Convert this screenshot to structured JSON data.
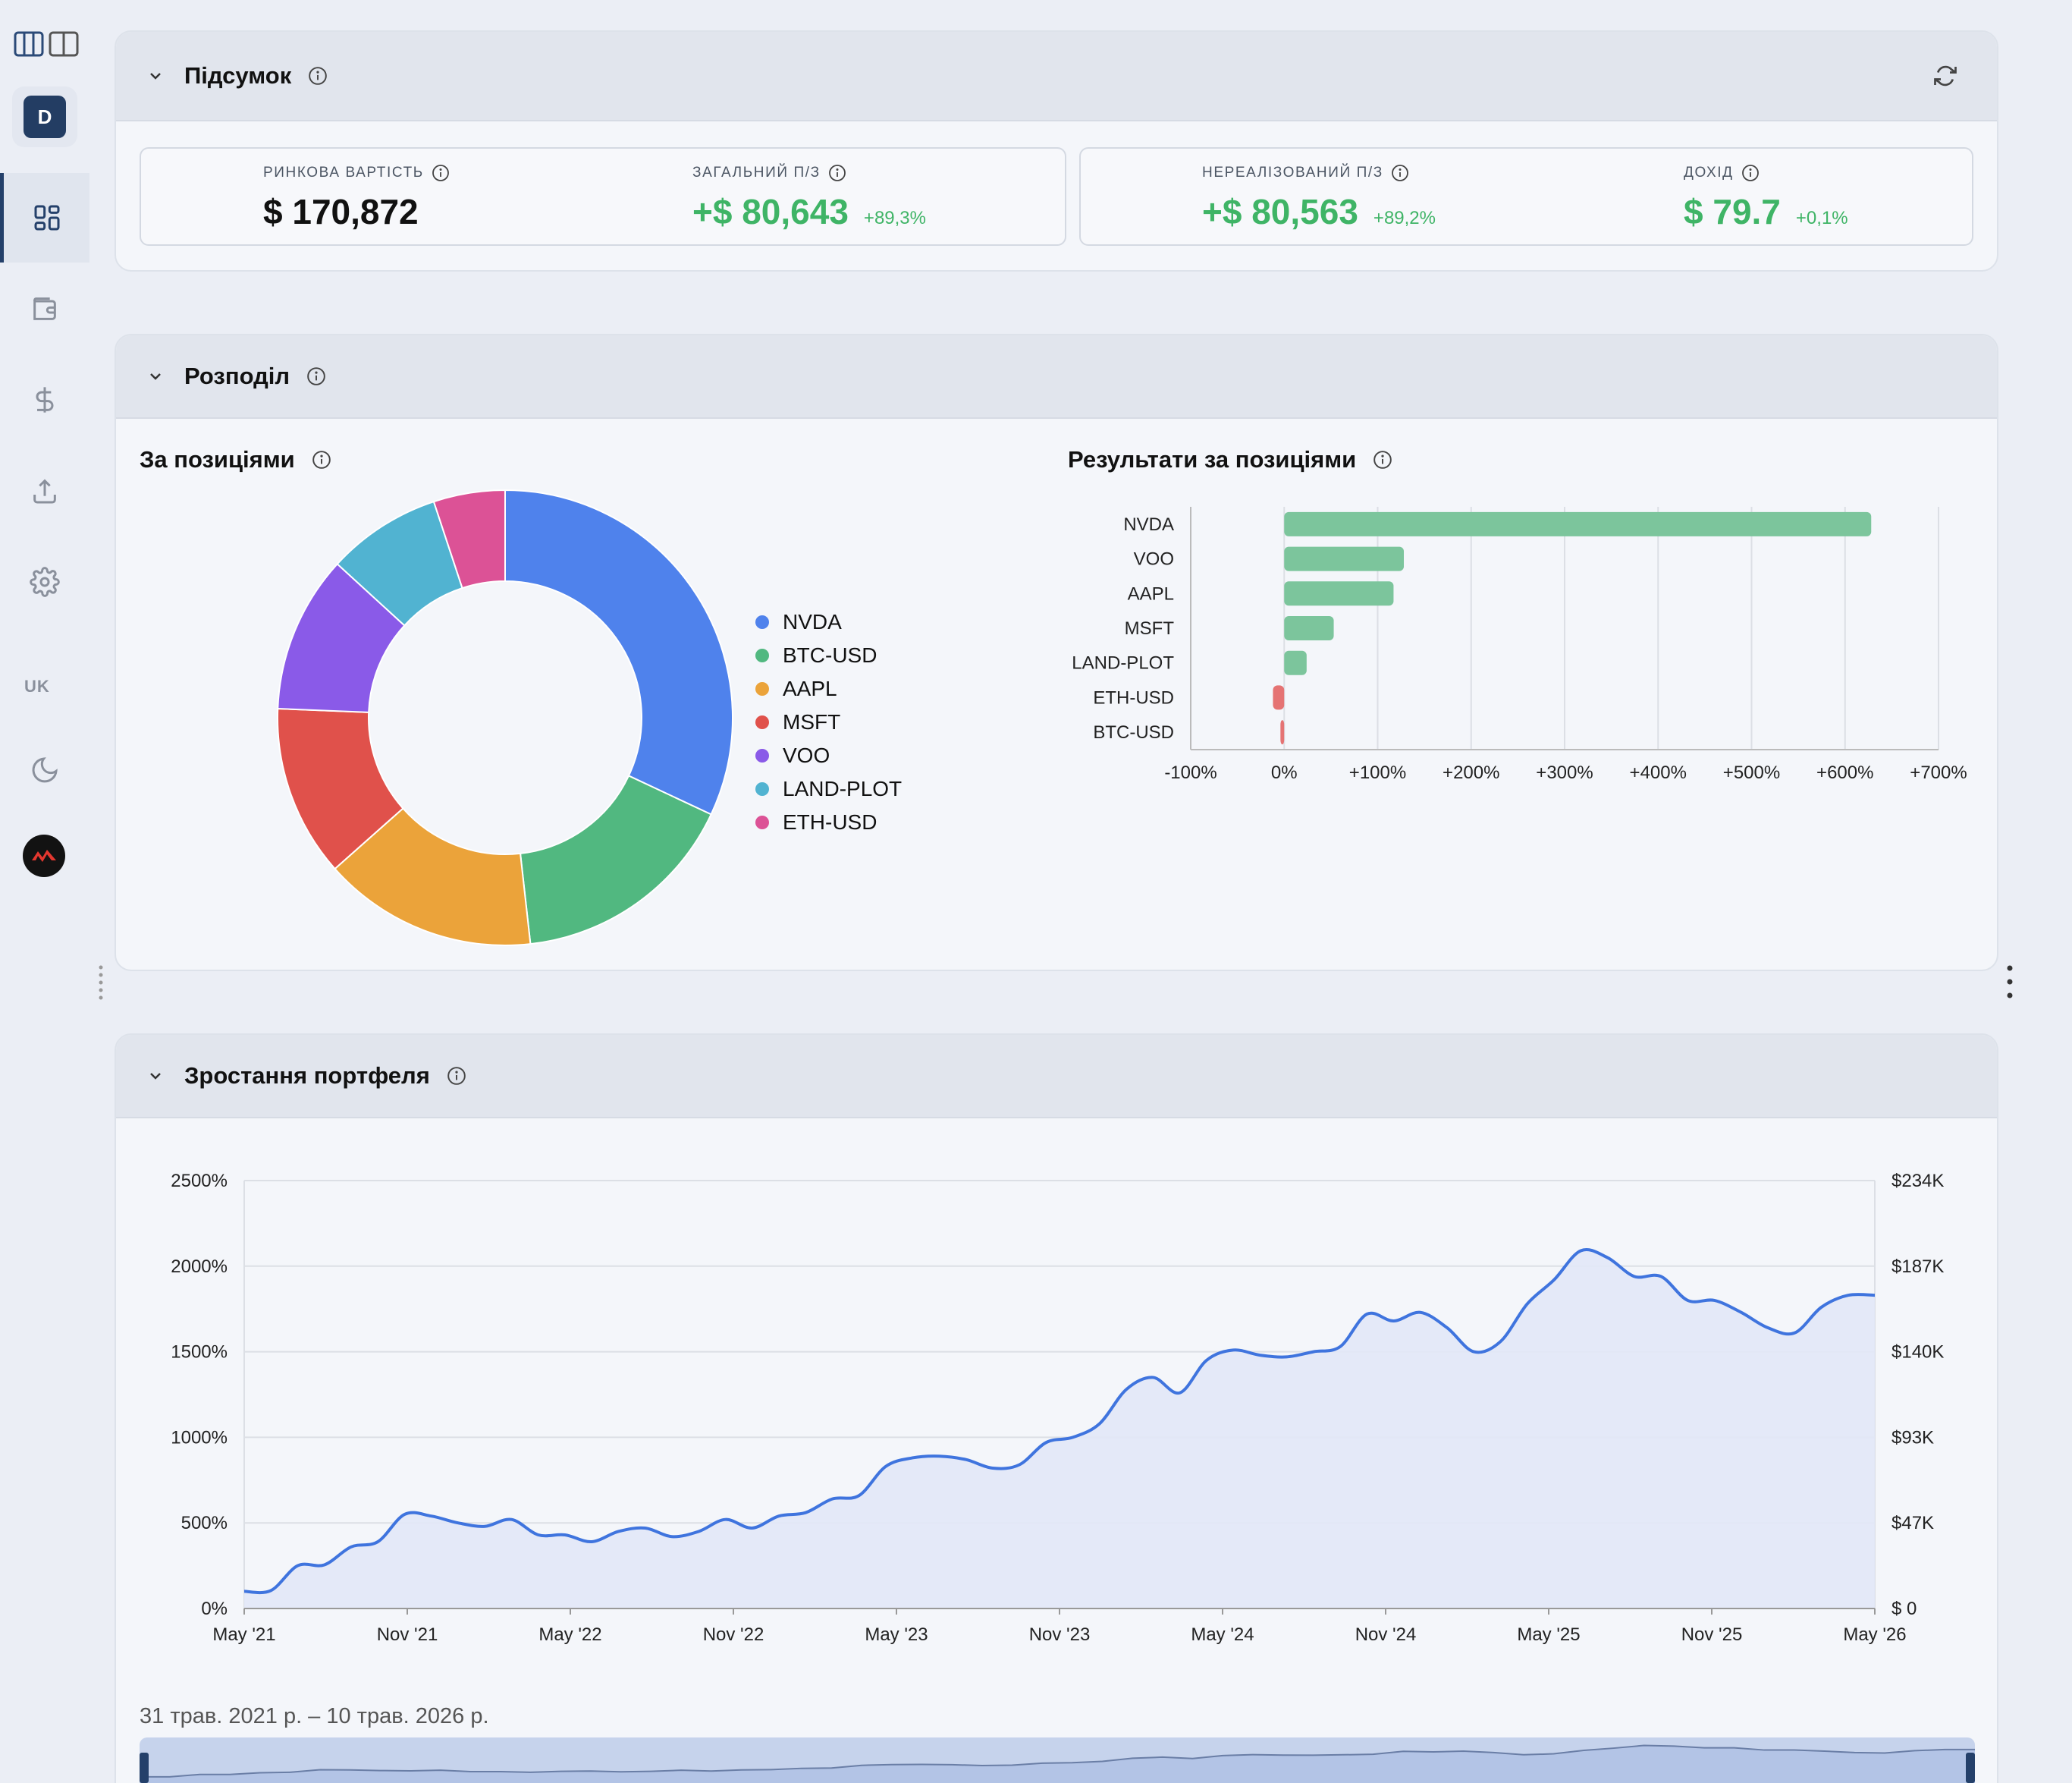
{
  "sidebar": {
    "avatar_letter": "D",
    "language": "UK"
  },
  "summary": {
    "title": "Підсумок",
    "market_value": {
      "label": "РИНКОВА ВАРТІСТЬ",
      "value": "$ 170,872"
    },
    "total_pl": {
      "label": "ЗАГАЛЬНИЙ П/З",
      "value": "+$ 80,643",
      "pct": "+89,3%"
    },
    "unrealized_pl": {
      "label": "НЕРЕАЛІЗОВАНИЙ П/З",
      "value": "+$ 80,563",
      "pct": "+89,2%"
    },
    "income": {
      "label": "ДОХІД",
      "value": "$ 79.7",
      "pct": "+0,1%"
    }
  },
  "allocation": {
    "title": "Розподіл",
    "by_position_title": "За позиціями",
    "results_title": "Результати за позиціями"
  },
  "growth": {
    "title": "Зростання портфеля",
    "date_range": "31 трав. 2021 р. – 10 трав. 2026 р."
  },
  "colors": {
    "accent": "#24406a",
    "positive": "#3fb466",
    "bar_positive": "#7cc59c",
    "bar_negative": "#e57373",
    "line": "#3f74de",
    "area": "#e2e8f7"
  },
  "chart_data": [
    {
      "type": "pie",
      "title": "За позиціями",
      "legend": "right",
      "labels": [
        "NVDA",
        "BTC-USD",
        "AAPL",
        "MSFT",
        "VOO",
        "LAND-PLOT",
        "ETH-USD"
      ],
      "values": [
        31.5,
        16.0,
        15.0,
        12.0,
        11.0,
        8.0,
        5.0
      ],
      "colors": [
        "#4f82ec",
        "#51b880",
        "#eba33a",
        "#e0514b",
        "#8a5ae8",
        "#51b3d1",
        "#dc5296"
      ]
    },
    {
      "type": "bar",
      "orientation": "horizontal",
      "title": "Результати за позиціями",
      "categories": [
        "NVDA",
        "VOO",
        "AAPL",
        "MSFT",
        "LAND-PLOT",
        "ETH-USD",
        "BTC-USD"
      ],
      "values": [
        628,
        128,
        117,
        53,
        24,
        -12,
        -4
      ],
      "xlim": [
        -100,
        700
      ],
      "xticks": [
        "-100%",
        "0%",
        "+100%",
        "+200%",
        "+300%",
        "+400%",
        "+500%",
        "+600%",
        "+700%"
      ],
      "grid": true
    },
    {
      "type": "area",
      "title": "Зростання портфеля",
      "x_ticks": [
        "May '21",
        "Nov '21",
        "May '22",
        "Nov '22",
        "May '23",
        "Nov '23",
        "May '24",
        "Nov '24",
        "May '25",
        "Nov '25",
        "May '26"
      ],
      "y_left_ticks": [
        "0%",
        "500%",
        "1000%",
        "1500%",
        "2000%",
        "2500%"
      ],
      "y_right_ticks": [
        "$ 0",
        "$47K",
        "$93K",
        "$140K",
        "$187K",
        "$234K"
      ],
      "ylim": [
        0,
        2500
      ],
      "grid": true,
      "y": [
        100,
        105,
        250,
        255,
        360,
        390,
        550,
        540,
        500,
        480,
        520,
        430,
        430,
        390,
        450,
        470,
        420,
        450,
        520,
        470,
        540,
        560,
        640,
        660,
        830,
        880,
        890,
        870,
        820,
        840,
        970,
        1000,
        1080,
        1280,
        1350,
        1260,
        1450,
        1510,
        1480,
        1470,
        1500,
        1530,
        1720,
        1680,
        1730,
        1640,
        1500,
        1560,
        1780,
        1920,
        2090,
        2050,
        1940,
        1940,
        1800,
        1800,
        1730,
        1640,
        1610,
        1760,
        1830,
        1830
      ]
    }
  ]
}
